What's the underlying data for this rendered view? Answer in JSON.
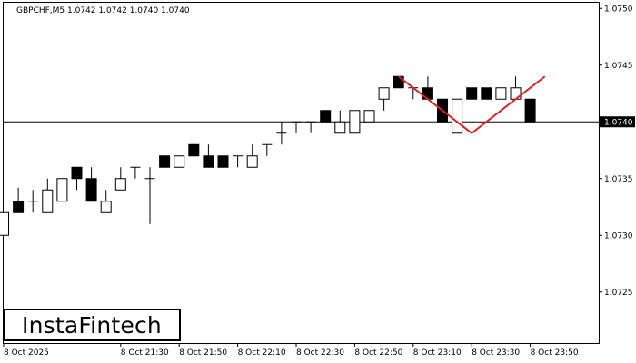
{
  "chart_data": {
    "type": "candlestick",
    "title": "GBPCHF,M5  1.0742 1.0742 1.0740 1.0740",
    "ylim": [
      1.07205,
      1.07505
    ],
    "yticks": [
      "1.0750",
      "1.0745",
      "1.0740",
      "1.0735",
      "1.0730",
      "1.0725"
    ],
    "xticks": [
      {
        "i": 0,
        "label": "8 Oct 2025"
      },
      {
        "i": 8,
        "label": "8 Oct 21:30"
      },
      {
        "i": 12,
        "label": "8 Oct 21:50"
      },
      {
        "i": 16,
        "label": "8 Oct 22:10"
      },
      {
        "i": 20,
        "label": "8 Oct 22:30"
      },
      {
        "i": 24,
        "label": "8 Oct 22:50"
      },
      {
        "i": 28,
        "label": "8 Oct 23:10"
      },
      {
        "i": 32,
        "label": "8 Oct 23:30"
      },
      {
        "i": 36,
        "label": "8 Oct 23:50"
      }
    ],
    "current_price": 1.074,
    "current_price_label": "1.0740",
    "candles": [
      {
        "o": 1.073,
        "h": 1.0732,
        "l": 1.073,
        "c": 1.0732
      },
      {
        "o": 1.0733,
        "h": 1.07342,
        "l": 1.0732,
        "c": 1.0732
      },
      {
        "o": 1.0733,
        "h": 1.0734,
        "l": 1.0732,
        "c": 1.0733
      },
      {
        "o": 1.0732,
        "h": 1.0735,
        "l": 1.0732,
        "c": 1.0734
      },
      {
        "o": 1.0733,
        "h": 1.0735,
        "l": 1.0733,
        "c": 1.0735
      },
      {
        "o": 1.0736,
        "h": 1.0736,
        "l": 1.0734,
        "c": 1.0735
      },
      {
        "o": 1.0735,
        "h": 1.0736,
        "l": 1.0733,
        "c": 1.0733
      },
      {
        "o": 1.0732,
        "h": 1.0734,
        "l": 1.0732,
        "c": 1.0733
      },
      {
        "o": 1.0734,
        "h": 1.0736,
        "l": 1.0734,
        "c": 1.0735
      },
      {
        "o": 1.0736,
        "h": 1.0736,
        "l": 1.0735,
        "c": 1.0736
      },
      {
        "o": 1.0735,
        "h": 1.0736,
        "l": 1.0731,
        "c": 1.0735
      },
      {
        "o": 1.0737,
        "h": 1.0737,
        "l": 1.0736,
        "c": 1.0736
      },
      {
        "o": 1.0736,
        "h": 1.0737,
        "l": 1.0736,
        "c": 1.0737
      },
      {
        "o": 1.0738,
        "h": 1.0738,
        "l": 1.0737,
        "c": 1.0737
      },
      {
        "o": 1.0737,
        "h": 1.0738,
        "l": 1.0736,
        "c": 1.0736
      },
      {
        "o": 1.0737,
        "h": 1.0737,
        "l": 1.0736,
        "c": 1.0736
      },
      {
        "o": 1.0737,
        "h": 1.0737,
        "l": 1.0736,
        "c": 1.0737
      },
      {
        "o": 1.0736,
        "h": 1.0738,
        "l": 1.0736,
        "c": 1.0737
      },
      {
        "o": 1.0738,
        "h": 1.0738,
        "l": 1.0737,
        "c": 1.0738
      },
      {
        "o": 1.0739,
        "h": 1.074,
        "l": 1.0738,
        "c": 1.0739
      },
      {
        "o": 1.074,
        "h": 1.074,
        "l": 1.0739,
        "c": 1.074
      },
      {
        "o": 1.074,
        "h": 1.074,
        "l": 1.0739,
        "c": 1.074
      },
      {
        "o": 1.0741,
        "h": 1.0741,
        "l": 1.074,
        "c": 1.074
      },
      {
        "o": 1.0739,
        "h": 1.0741,
        "l": 1.0739,
        "c": 1.074
      },
      {
        "o": 1.0739,
        "h": 1.0741,
        "l": 1.0739,
        "c": 1.0741
      },
      {
        "o": 1.074,
        "h": 1.0741,
        "l": 1.074,
        "c": 1.0741
      },
      {
        "o": 1.0742,
        "h": 1.0743,
        "l": 1.0741,
        "c": 1.0743
      },
      {
        "o": 1.0744,
        "h": 1.0744,
        "l": 1.0743,
        "c": 1.0743
      },
      {
        "o": 1.0743,
        "h": 1.0743,
        "l": 1.0742,
        "c": 1.0743
      },
      {
        "o": 1.0743,
        "h": 1.0744,
        "l": 1.0742,
        "c": 1.0742
      },
      {
        "o": 1.0742,
        "h": 1.0742,
        "l": 1.074,
        "c": 1.074
      },
      {
        "o": 1.0739,
        "h": 1.0742,
        "l": 1.0739,
        "c": 1.0742
      },
      {
        "o": 1.0743,
        "h": 1.0743,
        "l": 1.0742,
        "c": 1.0742
      },
      {
        "o": 1.0743,
        "h": 1.0743,
        "l": 1.0742,
        "c": 1.0742
      },
      {
        "o": 1.0742,
        "h": 1.0743,
        "l": 1.0742,
        "c": 1.0743
      },
      {
        "o": 1.0742,
        "h": 1.0744,
        "l": 1.0742,
        "c": 1.0743
      },
      {
        "o": 1.0742,
        "h": 1.0742,
        "l": 1.074,
        "c": 1.074
      }
    ],
    "pattern_line": [
      {
        "i": 27,
        "p": 1.0744
      },
      {
        "i": 32,
        "p": 1.0739
      },
      {
        "i": 37,
        "p": 1.0744
      }
    ],
    "colors": {
      "bull_fill": "#ffffff",
      "bear_fill": "#000000",
      "candle_outline": "#000000",
      "pattern": "#e02020",
      "price_tag": "#000000"
    }
  },
  "logo_text": "InstaFintech"
}
